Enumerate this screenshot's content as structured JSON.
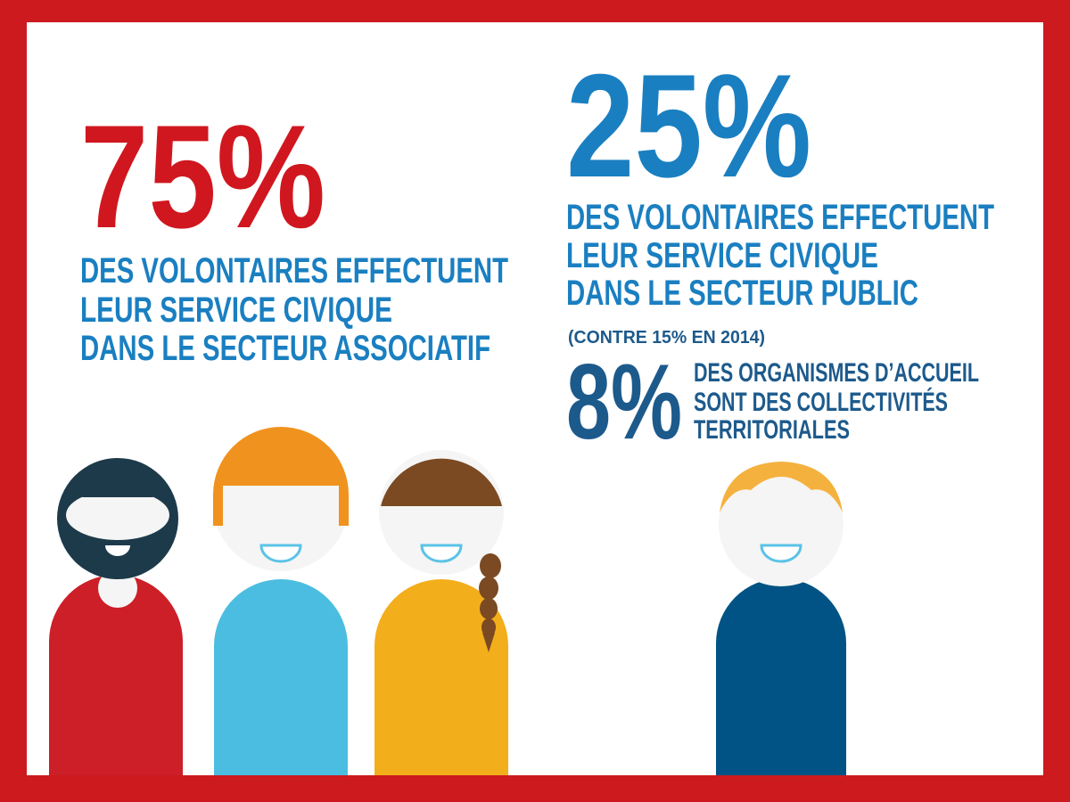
{
  "left": {
    "figure": "75%",
    "lines": [
      "DES VOLONTAIRES EFFECTUENT",
      "LEUR SERVICE CIVIQUE",
      "DANS LE SECTEUR ASSOCIATIF"
    ]
  },
  "right": {
    "figure": "25%",
    "lines": [
      "DES VOLONTAIRES EFFECTUENT",
      "LEUR SERVICE CIVIQUE",
      "DANS LE SECTEUR PUBLIC"
    ],
    "note": "(CONTRE 15% EN 2014)",
    "detail": {
      "figure": "8%",
      "lines": [
        "DES ORGANISMES D’ACCUEIL",
        "SONT DES COLLECTIVITÉS",
        "TERRITORIALES"
      ]
    }
  }
}
